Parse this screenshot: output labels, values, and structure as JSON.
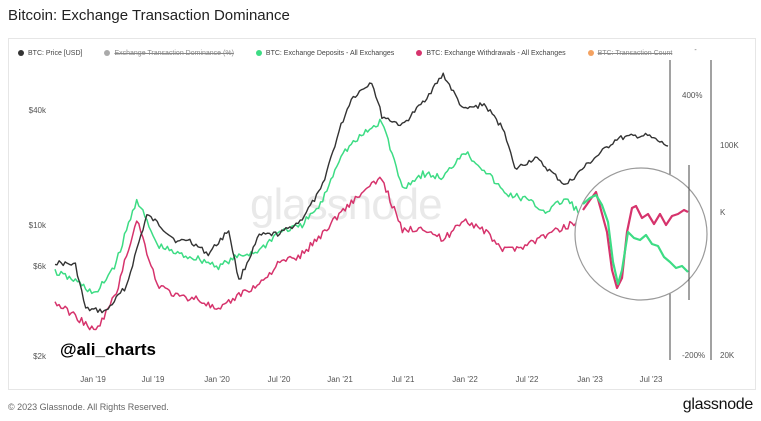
{
  "header": {
    "title": "Bitcoin: Exchange Transaction Dominance"
  },
  "legend": {
    "items": [
      {
        "label": "BTC: Price [USD]",
        "color": "#333333",
        "active": true
      },
      {
        "label": "Exchange Transaction Dominance (%)",
        "color": "#aaaaaa",
        "active": false
      },
      {
        "label": "BTC: Exchange Deposits - All Exchanges",
        "color": "#3ddc84",
        "active": true
      },
      {
        "label": "BTC: Exchange Withdrawals - All Exchanges",
        "color": "#d6336c",
        "active": true
      },
      {
        "label": "BTC: Transaction Count",
        "color": "#f4a261",
        "active": false
      }
    ],
    "trailing": "-"
  },
  "watermark": "glassnode",
  "handle": "@ali_charts",
  "footer": {
    "copyright": "© 2023 Glassnode. All Rights Reserved.",
    "brand": "glassnode"
  },
  "chart_data": {
    "type": "line",
    "title": "Bitcoin: Exchange Transaction Dominance",
    "x_ticks": [
      "Jan '19",
      "Jul '19",
      "Jan '20",
      "Jul '20",
      "Jan '21",
      "Jul '21",
      "Jan '22",
      "Jul '22",
      "Jan '23",
      "Jul '23"
    ],
    "y_left_ticks": [
      "$40k",
      "$10k",
      "$6k",
      "$2k"
    ],
    "y_mid_ticks": [
      "400%",
      "-200%"
    ],
    "y_right_ticks": [
      "100K",
      "K",
      "20K"
    ],
    "y_left_scale": "log",
    "y_left_range": [
      2000,
      75000
    ],
    "x_range": [
      "2018-09",
      "2023-09"
    ],
    "grid": false,
    "legend_position": "top",
    "series": [
      {
        "name": "BTC: Price [USD]",
        "color": "#333333",
        "x": [
          "2018-09",
          "2018-11",
          "2018-12",
          "2019-02",
          "2019-04",
          "2019-05",
          "2019-06",
          "2019-07",
          "2019-09",
          "2019-10",
          "2019-12",
          "2020-02",
          "2020-03",
          "2020-05",
          "2020-07",
          "2020-09",
          "2020-11",
          "2020-12",
          "2021-01",
          "2021-02",
          "2021-04",
          "2021-05",
          "2021-07",
          "2021-09",
          "2021-11",
          "2022-01",
          "2022-03",
          "2022-05",
          "2022-06",
          "2022-08",
          "2022-11",
          "2023-01",
          "2023-03",
          "2023-04",
          "2023-06",
          "2023-07",
          "2023-09"
        ],
        "values": [
          6500,
          6300,
          3700,
          3600,
          4900,
          7600,
          11500,
          10500,
          8300,
          8600,
          7200,
          9600,
          5200,
          9000,
          9200,
          10700,
          15500,
          23000,
          34000,
          47000,
          58000,
          38000,
          34000,
          45000,
          63000,
          41000,
          44000,
          32000,
          20000,
          23000,
          16500,
          21000,
          26000,
          29000,
          30000,
          30000,
          26500
        ]
      },
      {
        "name": "BTC: Exchange Deposits - All Exchanges",
        "color": "#3ddc84",
        "x": [
          "2018-09",
          "2018-11",
          "2019-01",
          "2019-03",
          "2019-05",
          "2019-07",
          "2019-09",
          "2019-11",
          "2020-01",
          "2020-03",
          "2020-05",
          "2020-07",
          "2020-09",
          "2020-11",
          "2021-01",
          "2021-03",
          "2021-05",
          "2021-07",
          "2021-09",
          "2021-11",
          "2022-01",
          "2022-03",
          "2022-05",
          "2022-07",
          "2022-09",
          "2022-11",
          "2023-01",
          "2023-03",
          "2023-05",
          "2023-07",
          "2023-09"
        ],
        "values": [
          5800,
          5200,
          4400,
          6500,
          14000,
          8000,
          7200,
          6800,
          6200,
          7000,
          7500,
          9500,
          10000,
          13000,
          24000,
          30000,
          36000,
          16000,
          19000,
          18000,
          25000,
          20000,
          15000,
          14000,
          12000,
          14000,
          11000,
          12000,
          10500,
          11500,
          11000
        ]
      },
      {
        "name": "BTC: Exchange Withdrawals - All Exchanges",
        "color": "#d6336c",
        "x": [
          "2018-09",
          "2018-11",
          "2019-01",
          "2019-03",
          "2019-05",
          "2019-07",
          "2019-09",
          "2019-11",
          "2020-01",
          "2020-03",
          "2020-05",
          "2020-07",
          "2020-09",
          "2020-11",
          "2021-01",
          "2021-03",
          "2021-05",
          "2021-07",
          "2021-09",
          "2021-11",
          "2022-01",
          "2022-03",
          "2022-05",
          "2022-07",
          "2022-09",
          "2022-11",
          "2023-01",
          "2023-03",
          "2023-05",
          "2023-07",
          "2023-09"
        ],
        "values": [
          4000,
          3400,
          2800,
          4500,
          11000,
          5000,
          4300,
          4200,
          3600,
          4400,
          5000,
          6500,
          7000,
          9000,
          12000,
          15000,
          18000,
          9500,
          10000,
          8500,
          11000,
          9500,
          7500,
          8000,
          9000,
          10000,
          11500,
          12000,
          11000,
          12000,
          12500
        ]
      }
    ]
  }
}
